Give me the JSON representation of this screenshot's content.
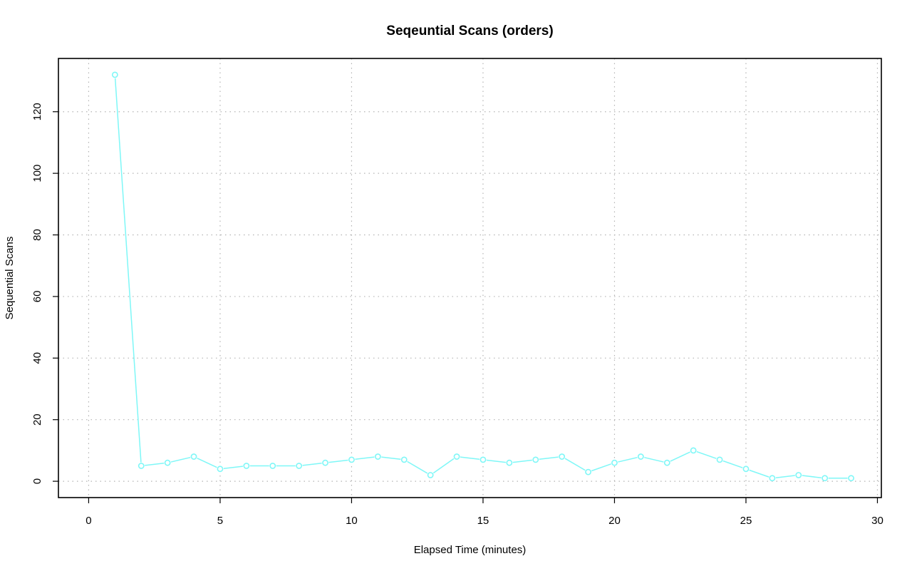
{
  "chart_data": {
    "type": "line",
    "title": "Seqeuntial Scans (orders)",
    "xlabel": "Elapsed Time (minutes)",
    "ylabel": "Sequential Scans",
    "xlim": [
      -1.15,
      30.15
    ],
    "ylim": [
      -5.3,
      137.3
    ],
    "x_ticks": [
      0,
      5,
      10,
      15,
      20,
      25,
      30
    ],
    "y_ticks": [
      0,
      20,
      40,
      60,
      80,
      100,
      120
    ],
    "grid": true,
    "series": [
      {
        "color": "#7ff7f7",
        "marker": "open-circle",
        "x": [
          1,
          2,
          3,
          4,
          5,
          6,
          7,
          8,
          9,
          10,
          11,
          12,
          13,
          14,
          15,
          16,
          17,
          18,
          19,
          20,
          21,
          22,
          23,
          24,
          25,
          26,
          27,
          28,
          29
        ],
        "y": [
          132,
          5,
          6,
          8,
          4,
          5,
          5,
          5,
          6,
          7,
          8,
          7,
          2,
          8,
          7,
          6,
          7,
          8,
          3,
          6,
          8,
          6,
          10,
          7,
          4,
          1,
          2,
          1,
          1
        ]
      }
    ]
  }
}
